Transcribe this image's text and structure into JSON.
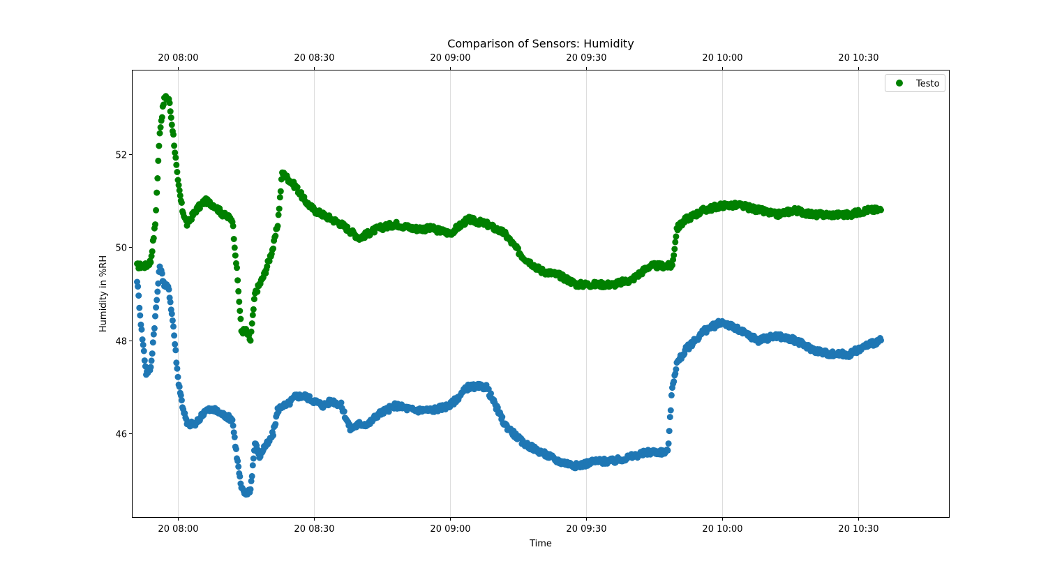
{
  "chart_data": {
    "type": "scatter",
    "title": "Comparison of Sensors: Humidity",
    "xlabel": "Time",
    "ylabel": "Humidity in %RH",
    "xlim": [
      "2024-01-20 07:50",
      "2024-01-20 10:40"
    ],
    "ylim": [
      44.2,
      53.8
    ],
    "yticks": [
      46,
      48,
      50,
      52
    ],
    "xticks": [
      "20 08:00",
      "20 08:30",
      "20 09:00",
      "20 09:30",
      "20 10:00",
      "20 10:30"
    ],
    "xticks_top": [
      "20 08:00",
      "20 08:30",
      "20 09:00",
      "20 09:30",
      "20 10:00",
      "20 10:30"
    ],
    "grid": "vertical",
    "legend": {
      "position": "top-right",
      "entries": [
        "Testo"
      ]
    },
    "series": [
      {
        "name": "Testo",
        "color": "#008000",
        "x": [
          "07:51",
          "07:53",
          "07:54",
          "07:55",
          "07:56",
          "07:57",
          "07:58",
          "07:59",
          "08:00",
          "08:01",
          "08:02",
          "08:04",
          "08:06",
          "08:08",
          "08:10",
          "08:12",
          "08:13",
          "08:14",
          "08:15",
          "08:16",
          "08:17",
          "08:18",
          "08:19",
          "08:20",
          "08:21",
          "08:22",
          "08:23",
          "08:24",
          "08:25",
          "08:26",
          "08:28",
          "08:30",
          "08:32",
          "08:34",
          "08:36",
          "08:40",
          "08:44",
          "08:48",
          "08:52",
          "08:56",
          "09:00",
          "09:04",
          "09:08",
          "09:12",
          "09:16",
          "09:20",
          "09:24",
          "09:28",
          "09:32",
          "09:36",
          "09:40",
          "09:44",
          "09:48",
          "09:49",
          "09:50",
          "09:52",
          "09:56",
          "10:00",
          "10:04",
          "10:08",
          "10:12",
          "10:16",
          "10:20",
          "10:24",
          "10:28",
          "10:32",
          "10:35"
        ],
        "y": [
          49.6,
          49.6,
          49.7,
          50.5,
          52.5,
          53.2,
          53.2,
          52.4,
          51.4,
          50.8,
          50.5,
          50.8,
          51.0,
          50.9,
          50.7,
          50.6,
          49.5,
          48.2,
          48.2,
          48.0,
          49.0,
          49.2,
          49.4,
          49.7,
          50.0,
          50.5,
          51.6,
          51.5,
          51.4,
          51.3,
          51.0,
          50.8,
          50.7,
          50.6,
          50.5,
          50.2,
          50.4,
          50.5,
          50.4,
          50.4,
          50.3,
          50.6,
          50.5,
          50.3,
          49.8,
          49.5,
          49.4,
          49.2,
          49.2,
          49.2,
          49.3,
          49.6,
          49.6,
          49.6,
          50.4,
          50.6,
          50.8,
          50.9,
          50.9,
          50.8,
          50.7,
          50.8,
          50.7,
          50.7,
          50.7,
          50.8,
          50.8
        ]
      },
      {
        "name": "",
        "color": "#1f77b4",
        "x": [
          "07:51",
          "07:52",
          "07:53",
          "07:54",
          "07:55",
          "07:56",
          "07:57",
          "07:58",
          "07:59",
          "08:00",
          "08:01",
          "08:02",
          "08:04",
          "08:06",
          "08:08",
          "08:10",
          "08:12",
          "08:13",
          "08:14",
          "08:15",
          "08:16",
          "08:17",
          "08:18",
          "08:19",
          "08:20",
          "08:21",
          "08:22",
          "08:23",
          "08:24",
          "08:25",
          "08:26",
          "08:28",
          "08:30",
          "08:32",
          "08:34",
          "08:36",
          "08:38",
          "08:40",
          "08:42",
          "08:44",
          "08:48",
          "08:52",
          "08:56",
          "09:00",
          "09:02",
          "09:04",
          "09:06",
          "09:08",
          "09:10",
          "09:12",
          "09:16",
          "09:20",
          "09:24",
          "09:28",
          "09:32",
          "09:36",
          "09:40",
          "09:44",
          "09:47",
          "09:48",
          "09:49",
          "09:50",
          "09:52",
          "09:56",
          "10:00",
          "10:04",
          "10:08",
          "10:12",
          "10:16",
          "10:20",
          "10:24",
          "10:28",
          "10:32",
          "10:35"
        ],
        "y": [
          49.3,
          48.2,
          47.3,
          47.4,
          48.5,
          49.6,
          49.2,
          49.1,
          48.3,
          47.2,
          46.6,
          46.2,
          46.2,
          46.5,
          46.5,
          46.4,
          46.3,
          45.5,
          44.8,
          44.7,
          44.8,
          45.8,
          45.5,
          45.7,
          45.8,
          46.0,
          46.5,
          46.6,
          46.6,
          46.7,
          46.8,
          46.8,
          46.7,
          46.6,
          46.7,
          46.6,
          46.1,
          46.2,
          46.2,
          46.4,
          46.6,
          46.5,
          46.5,
          46.6,
          46.8,
          47.0,
          47.0,
          47.0,
          46.6,
          46.2,
          45.8,
          45.6,
          45.4,
          45.3,
          45.4,
          45.4,
          45.5,
          45.6,
          45.6,
          45.6,
          47.0,
          47.5,
          47.8,
          48.2,
          48.4,
          48.2,
          48.0,
          48.1,
          48.0,
          47.8,
          47.7,
          47.7,
          47.9,
          48.0
        ]
      }
    ]
  }
}
